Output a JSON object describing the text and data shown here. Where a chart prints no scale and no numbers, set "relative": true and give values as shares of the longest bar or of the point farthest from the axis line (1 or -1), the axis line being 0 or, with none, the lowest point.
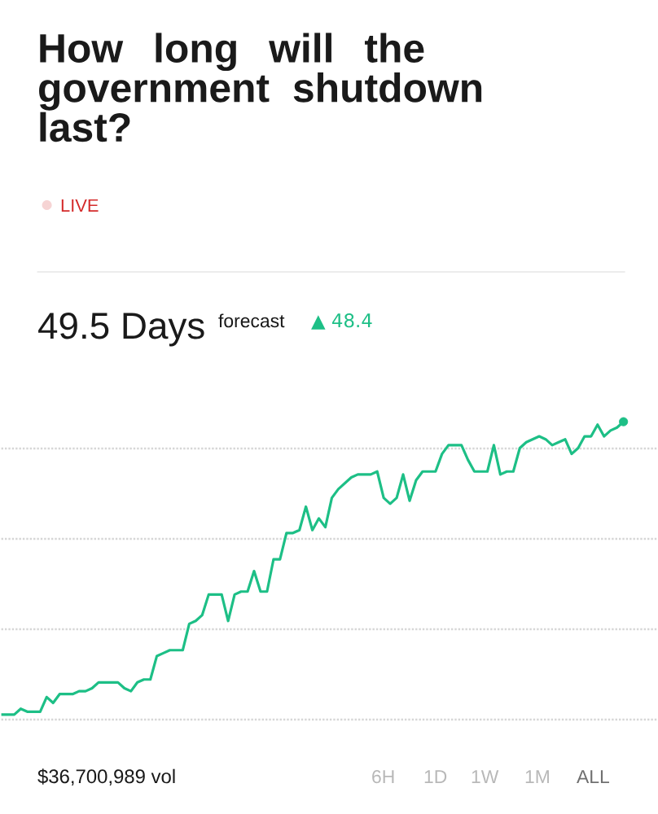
{
  "chart_data": {
    "type": "line",
    "title": "How long will the government shutdown last?",
    "relative": true,
    "grid": "y",
    "color": "#1dbf86",
    "categories": [
      null,
      null,
      null,
      null,
      null,
      null,
      null,
      null,
      null,
      null,
      null,
      null,
      null,
      null,
      null,
      null,
      null,
      null,
      null,
      null,
      null,
      null,
      null,
      null,
      null,
      null,
      null,
      null,
      null,
      null,
      null,
      null,
      null,
      null,
      null,
      null,
      null,
      null,
      null,
      null,
      null,
      null,
      null,
      null,
      null,
      null,
      null,
      null,
      null,
      null,
      null,
      null,
      null,
      null,
      null,
      null,
      null,
      null,
      null,
      null,
      null,
      null,
      null,
      null,
      null,
      null,
      null,
      null,
      null,
      null,
      null,
      null,
      null,
      null,
      null,
      null,
      null,
      null,
      null,
      null,
      null,
      null,
      null,
      null,
      null,
      null,
      null,
      null,
      null,
      null,
      null,
      null,
      null,
      null,
      null,
      null,
      null
    ],
    "values": [
      0,
      0,
      0,
      0.02,
      0.01,
      0.01,
      0.01,
      0.06,
      0.04,
      0.07,
      0.07,
      0.07,
      0.08,
      0.08,
      0.09,
      0.11,
      0.11,
      0.11,
      0.11,
      0.09,
      0.08,
      0.11,
      0.12,
      0.12,
      0.2,
      0.21,
      0.22,
      0.22,
      0.22,
      0.31,
      0.32,
      0.34,
      0.41,
      0.41,
      0.41,
      0.32,
      0.41,
      0.42,
      0.42,
      0.49,
      0.42,
      0.42,
      0.53,
      0.53,
      0.62,
      0.62,
      0.63,
      0.71,
      0.63,
      0.67,
      0.64,
      0.74,
      0.77,
      0.79,
      0.81,
      0.82,
      0.82,
      0.82,
      0.83,
      0.74,
      0.72,
      0.74,
      0.82,
      0.73,
      0.8,
      0.83,
      0.83,
      0.83,
      0.89,
      0.92,
      0.92,
      0.92,
      0.87,
      0.83,
      0.83,
      0.83,
      0.92,
      0.82,
      0.83,
      0.83,
      0.91,
      0.93,
      0.94,
      0.95,
      0.94,
      0.92,
      0.93,
      0.94,
      0.89,
      0.91,
      0.95,
      0.95,
      0.99,
      0.95,
      0.97,
      0.98,
      1
    ],
    "annotations": [
      "LIVE",
      "49.5 Days",
      "forecast",
      "▲ 48.4",
      "$36,700,989 vol",
      "6H",
      "1D",
      "1W",
      "1M",
      "ALL"
    ]
  }
}
